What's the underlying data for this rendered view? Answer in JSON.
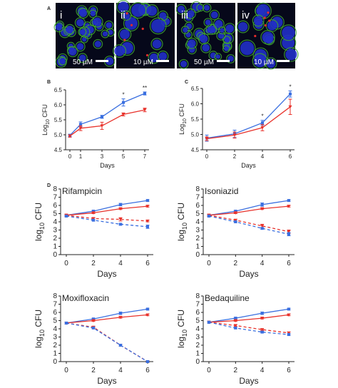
{
  "panels": {
    "A": {
      "letter": "A",
      "images": [
        {
          "label": "i",
          "scale": "50 µM"
        },
        {
          "label": "ii",
          "scale": "10 µM"
        },
        {
          "label": "iii",
          "scale": "50 µM"
        },
        {
          "label": "iv",
          "scale": "10 µM"
        }
      ]
    }
  },
  "colors": {
    "blue": "#3a6fe0",
    "red": "#e8322b",
    "green_stain": "#3fa535",
    "nucleus_blue": "#2130c8"
  },
  "chart_data": [
    {
      "id": "B",
      "letter": "B",
      "type": "line",
      "title": "",
      "xlabel": "Days",
      "ylabel": "Log10 CFU",
      "x": [
        0,
        1,
        3,
        5,
        7
      ],
      "xticks": [
        "0",
        "1",
        "3",
        "5",
        "7"
      ],
      "ylim": [
        4.5,
        6.5
      ],
      "yticks": [
        "4.5",
        "5.0",
        "5.5",
        "6.0",
        "6.5"
      ],
      "series": [
        {
          "color": "blue",
          "dashed": false,
          "values": [
            4.98,
            5.35,
            5.6,
            6.08,
            6.38
          ],
          "errors": [
            0.04,
            0.08,
            0.05,
            0.12,
            0.05
          ]
        },
        {
          "color": "red",
          "dashed": false,
          "values": [
            4.96,
            5.22,
            5.3,
            5.68,
            5.83
          ],
          "errors": [
            0.04,
            0.08,
            0.12,
            0.05,
            0.06
          ]
        }
      ],
      "annotations": [
        {
          "x": 5,
          "text": "*"
        },
        {
          "x": 7,
          "text": "**"
        }
      ]
    },
    {
      "id": "C",
      "letter": "C",
      "type": "line",
      "title": "",
      "xlabel": "Days",
      "ylabel": "Log10 CFU",
      "x": [
        0,
        2,
        4,
        6
      ],
      "xticks": [
        "0",
        "2",
        "4",
        "6"
      ],
      "ylim": [
        4.5,
        6.5
      ],
      "yticks": [
        "4.5",
        "5.0",
        "5.5",
        "6.0",
        "6.5"
      ],
      "series": [
        {
          "color": "blue",
          "dashed": false,
          "values": [
            4.88,
            5.02,
            5.38,
            6.32
          ],
          "errors": [
            0.1,
            0.12,
            0.08,
            0.1
          ]
        },
        {
          "color": "red",
          "dashed": false,
          "values": [
            4.86,
            4.98,
            5.22,
            5.9
          ],
          "errors": [
            0.06,
            0.1,
            0.1,
            0.25
          ]
        }
      ],
      "annotations": [
        {
          "x": 4,
          "text": "*"
        },
        {
          "x": 6,
          "text": "*"
        }
      ]
    },
    {
      "id": "D1",
      "letter": "D",
      "type": "line",
      "title": "Rifampicin",
      "xlabel": "Days",
      "ylabel": "log10 CFU",
      "x": [
        0,
        2,
        4,
        6
      ],
      "xticks": [
        "0",
        "2",
        "4",
        "6"
      ],
      "ylim": [
        0,
        8
      ],
      "yticks": [
        "0",
        "1",
        "2",
        "3",
        "4",
        "5",
        "6",
        "7",
        "8"
      ],
      "series": [
        {
          "color": "blue",
          "dashed": false,
          "values": [
            4.8,
            5.3,
            6.1,
            6.6
          ],
          "errors": [
            0.1,
            0.1,
            0.15,
            0.1
          ]
        },
        {
          "color": "red",
          "dashed": false,
          "values": [
            4.8,
            5.1,
            5.6,
            5.9
          ],
          "errors": [
            0.1,
            0.1,
            0.1,
            0.1
          ]
        },
        {
          "color": "red",
          "dashed": true,
          "values": [
            4.8,
            4.4,
            4.3,
            4.1
          ],
          "errors": [
            0.1,
            0.1,
            0.2,
            0.1
          ]
        },
        {
          "color": "blue",
          "dashed": true,
          "values": [
            4.7,
            4.2,
            3.7,
            3.4
          ],
          "errors": [
            0.1,
            0.1,
            0.1,
            0.2
          ]
        }
      ],
      "annotations": []
    },
    {
      "id": "D2",
      "letter": "",
      "type": "line",
      "title": "Isoniazid",
      "xlabel": "Days",
      "ylabel": "log10 CFU",
      "x": [
        0,
        2,
        4,
        6
      ],
      "xticks": [
        "0",
        "2",
        "4",
        "6"
      ],
      "ylim": [
        0,
        8
      ],
      "yticks": [
        "0",
        "1",
        "2",
        "3",
        "4",
        "5",
        "6",
        "7",
        "8"
      ],
      "series": [
        {
          "color": "blue",
          "dashed": false,
          "values": [
            4.8,
            5.3,
            6.1,
            6.6
          ],
          "errors": [
            0.1,
            0.1,
            0.2,
            0.1
          ]
        },
        {
          "color": "red",
          "dashed": false,
          "values": [
            4.8,
            5.1,
            5.6,
            5.9
          ],
          "errors": [
            0.1,
            0.1,
            0.1,
            0.1
          ]
        },
        {
          "color": "red",
          "dashed": true,
          "values": [
            4.8,
            4.2,
            3.5,
            2.8
          ],
          "errors": [
            0.1,
            0.1,
            0.2,
            0.2
          ]
        },
        {
          "color": "blue",
          "dashed": true,
          "values": [
            4.7,
            4.0,
            3.2,
            2.5
          ],
          "errors": [
            0.1,
            0.1,
            0.1,
            0.2
          ]
        }
      ],
      "annotations": []
    },
    {
      "id": "D3",
      "letter": "",
      "type": "line",
      "title": "Moxifloxacin",
      "xlabel": "Days",
      "ylabel": "log10 CFU",
      "x": [
        0,
        2,
        4,
        6
      ],
      "xticks": [
        "0",
        "2",
        "4",
        "6"
      ],
      "ylim": [
        0,
        8
      ],
      "yticks": [
        "0",
        "1",
        "2",
        "3",
        "4",
        "5",
        "6",
        "7",
        "8"
      ],
      "series": [
        {
          "color": "blue",
          "dashed": false,
          "values": [
            4.7,
            5.2,
            5.9,
            6.4
          ],
          "errors": [
            0.1,
            0.1,
            0.15,
            0.1
          ]
        },
        {
          "color": "red",
          "dashed": false,
          "values": [
            4.7,
            5.0,
            5.4,
            5.7
          ],
          "errors": [
            0.1,
            0.1,
            0.1,
            0.1
          ]
        },
        {
          "color": "red",
          "dashed": true,
          "values": [
            4.7,
            4.2,
            2.0,
            0.0
          ],
          "errors": [
            0.1,
            0.1,
            0.1,
            0.1
          ]
        },
        {
          "color": "blue",
          "dashed": true,
          "values": [
            4.7,
            4.1,
            2.0,
            0.0
          ],
          "errors": [
            0.1,
            0.1,
            0.1,
            0.1
          ]
        }
      ],
      "annotations": []
    },
    {
      "id": "D4",
      "letter": "",
      "type": "line",
      "title": "Bedaquiline",
      "xlabel": "Days",
      "ylabel": "log10 CFU",
      "x": [
        0,
        2,
        4,
        6
      ],
      "xticks": [
        "0",
        "2",
        "4",
        "6"
      ],
      "ylim": [
        0,
        8
      ],
      "yticks": [
        "0",
        "1",
        "2",
        "3",
        "4",
        "5",
        "6",
        "7",
        "8"
      ],
      "series": [
        {
          "color": "blue",
          "dashed": false,
          "values": [
            4.8,
            5.3,
            5.9,
            6.4
          ],
          "errors": [
            0.1,
            0.1,
            0.15,
            0.1
          ]
        },
        {
          "color": "red",
          "dashed": false,
          "values": [
            4.8,
            5.0,
            5.3,
            5.7
          ],
          "errors": [
            0.1,
            0.1,
            0.1,
            0.1
          ]
        },
        {
          "color": "red",
          "dashed": true,
          "values": [
            4.8,
            4.4,
            3.9,
            3.5
          ],
          "errors": [
            0.1,
            0.1,
            0.1,
            0.1
          ]
        },
        {
          "color": "blue",
          "dashed": true,
          "values": [
            4.8,
            4.1,
            3.6,
            3.3
          ],
          "errors": [
            0.1,
            0.1,
            0.1,
            0.1
          ]
        }
      ],
      "annotations": []
    }
  ]
}
